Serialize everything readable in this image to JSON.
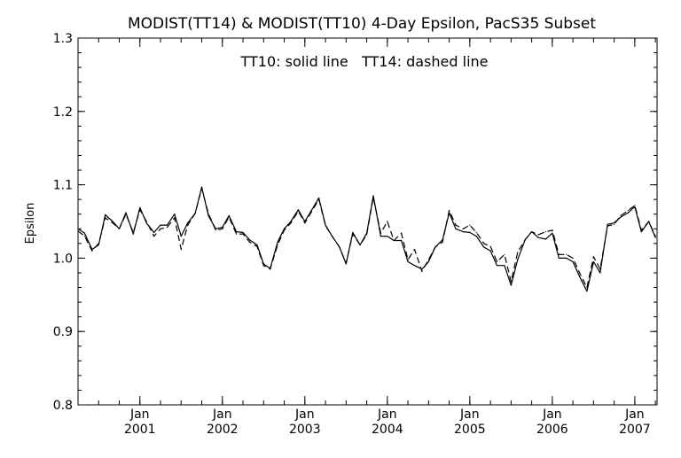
{
  "chart_data": {
    "type": "line",
    "title": "MODIST(TT14) & MODIST(TT10) 4-Day Epsilon, PacS35 Subset",
    "annotation": "TT10: solid line   TT14: dashed line",
    "xlabel": "",
    "ylabel": "Epsilon",
    "ylim": [
      0.8,
      1.3
    ],
    "xlim": [
      2000.25,
      2007.27
    ],
    "y_ticks": [
      "0.8",
      "0.9",
      "1.0",
      "1.1",
      "1.2",
      "1.3"
    ],
    "x_ticks": [
      {
        "top": "Jan",
        "bottom": "2001",
        "x": 2001.0
      },
      {
        "top": "Jan",
        "bottom": "2002",
        "x": 2002.0
      },
      {
        "top": "Jan",
        "bottom": "2003",
        "x": 2003.0
      },
      {
        "top": "Jan",
        "bottom": "2004",
        "x": 2004.0
      },
      {
        "top": "Jan",
        "bottom": "2005",
        "x": 2005.0
      },
      {
        "top": "Jan",
        "bottom": "2006",
        "x": 2006.0
      },
      {
        "top": "Jan",
        "bottom": "2007",
        "x": 2007.0
      }
    ],
    "grid": false,
    "x": [
      2000.25,
      2000.33,
      2000.42,
      2000.5,
      2000.58,
      2000.67,
      2000.75,
      2000.83,
      2000.92,
      2001.0,
      2001.08,
      2001.17,
      2001.25,
      2001.33,
      2001.42,
      2001.5,
      2001.58,
      2001.67,
      2001.75,
      2001.83,
      2001.92,
      2002.0,
      2002.08,
      2002.17,
      2002.25,
      2002.33,
      2002.42,
      2002.5,
      2002.58,
      2002.67,
      2002.75,
      2002.83,
      2002.92,
      2003.0,
      2003.08,
      2003.17,
      2003.25,
      2003.33,
      2003.42,
      2003.5,
      2003.58,
      2003.67,
      2003.75,
      2003.83,
      2003.92,
      2004.0,
      2004.08,
      2004.17,
      2004.25,
      2004.33,
      2004.42,
      2004.5,
      2004.58,
      2004.67,
      2004.75,
      2004.83,
      2004.92,
      2005.0,
      2005.08,
      2005.17,
      2005.25,
      2005.33,
      2005.42,
      2005.5,
      2005.58,
      2005.67,
      2005.75,
      2005.83,
      2005.92,
      2006.0,
      2006.08,
      2006.17,
      2006.25,
      2006.33,
      2006.42,
      2006.5,
      2006.58,
      2006.67,
      2006.75,
      2006.83,
      2006.92,
      2007.0,
      2007.08,
      2007.17,
      2007.25
    ],
    "series": [
      {
        "name": "TT10",
        "style": "solid",
        "values": [
          1.04,
          1.034,
          1.012,
          1.018,
          1.059,
          1.05,
          1.04,
          1.062,
          1.033,
          1.069,
          1.048,
          1.035,
          1.045,
          1.045,
          1.06,
          1.03,
          1.048,
          1.061,
          1.097,
          1.058,
          1.04,
          1.042,
          1.058,
          1.036,
          1.035,
          1.025,
          1.018,
          0.992,
          0.986,
          1.022,
          1.04,
          1.05,
          1.066,
          1.05,
          1.065,
          1.082,
          1.045,
          1.03,
          1.015,
          0.992,
          1.035,
          1.018,
          1.034,
          1.085,
          1.03,
          1.03,
          1.024,
          1.024,
          0.995,
          0.99,
          0.985,
          0.995,
          1.015,
          1.025,
          1.062,
          1.04,
          1.036,
          1.035,
          1.03,
          1.015,
          1.01,
          0.99,
          0.99,
          0.963,
          0.998,
          1.025,
          1.036,
          1.028,
          1.026,
          1.034,
          1.0,
          1.0,
          0.995,
          0.975,
          0.955,
          0.995,
          0.98,
          1.046,
          1.048,
          1.056,
          1.062,
          1.07,
          1.036,
          1.05,
          1.028
        ]
      },
      {
        "name": "TT14",
        "style": "dashed",
        "values": [
          1.037,
          1.03,
          1.01,
          1.02,
          1.055,
          1.048,
          1.04,
          1.06,
          1.035,
          1.066,
          1.05,
          1.03,
          1.04,
          1.042,
          1.055,
          1.012,
          1.045,
          1.061,
          1.095,
          1.061,
          1.038,
          1.04,
          1.056,
          1.033,
          1.033,
          1.022,
          1.016,
          0.99,
          0.985,
          1.018,
          1.038,
          1.048,
          1.064,
          1.048,
          1.063,
          1.08,
          1.044,
          1.03,
          1.015,
          0.993,
          1.033,
          1.018,
          1.032,
          1.083,
          1.034,
          1.05,
          1.024,
          1.034,
          0.998,
          1.012,
          0.982,
          0.998,
          1.015,
          1.022,
          1.065,
          1.045,
          1.04,
          1.045,
          1.035,
          1.02,
          1.016,
          0.995,
          1.005,
          0.968,
          1.008,
          1.025,
          1.036,
          1.032,
          1.036,
          1.038,
          1.005,
          1.005,
          1.0,
          0.98,
          0.96,
          1.002,
          0.985,
          1.044,
          1.046,
          1.058,
          1.065,
          1.072,
          1.038,
          1.05,
          1.03
        ]
      }
    ]
  }
}
